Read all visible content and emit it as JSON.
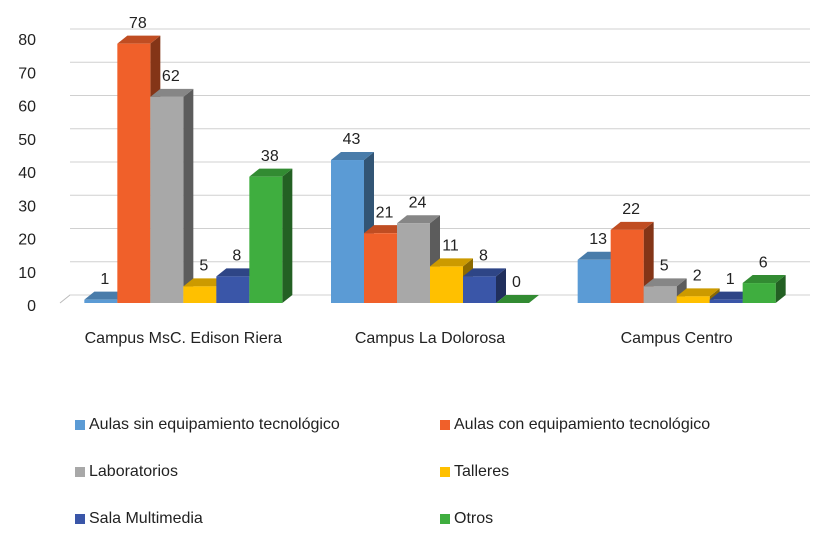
{
  "chart_data": {
    "type": "bar3d",
    "categories": [
      "Campus MsC. Edison Riera",
      "Campus La Dolorosa",
      "Campus Centro"
    ],
    "series": [
      {
        "name": "Aulas sin equipamiento tecnológico",
        "color": "#5b9bd5",
        "values": [
          1,
          43,
          13
        ]
      },
      {
        "name": "Aulas con equipamiento tecnológico",
        "color": "#f0602a",
        "values": [
          78,
          21,
          22
        ]
      },
      {
        "name": "Laboratorios",
        "color": "#a8a8a8",
        "values": [
          62,
          24,
          5
        ]
      },
      {
        "name": "Talleres",
        "color": "#ffc000",
        "values": [
          5,
          11,
          2
        ]
      },
      {
        "name": "Sala Multimedia",
        "color": "#3a56a8",
        "values": [
          8,
          8,
          1
        ]
      },
      {
        "name": "Otros",
        "color": "#3fae3f",
        "values": [
          38,
          0,
          6
        ]
      }
    ],
    "ylim": [
      0,
      80
    ],
    "yticks": [
      0,
      10,
      20,
      30,
      40,
      50,
      60,
      70,
      80
    ],
    "grid": true,
    "legend": "bottom"
  }
}
